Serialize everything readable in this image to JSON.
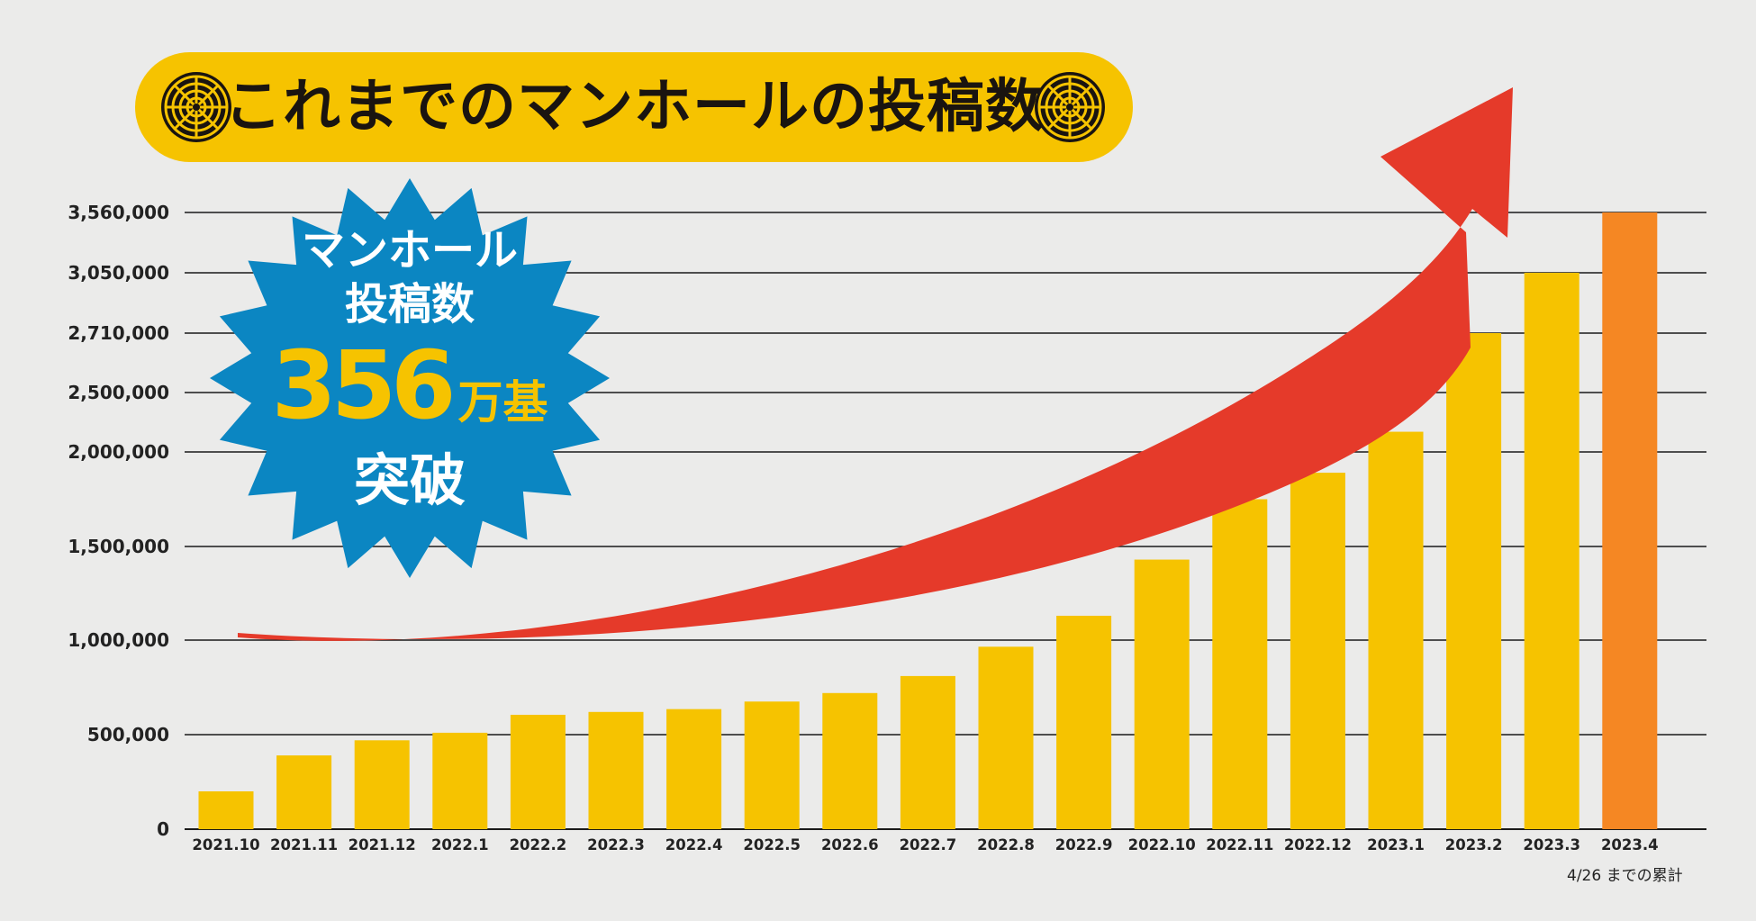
{
  "title": "これまでのマンホールの投稿数",
  "badge": {
    "line1": "マンホール",
    "line2": "投稿数",
    "number": "356",
    "unit": "万基",
    "line4": "突破"
  },
  "footnote": "4/26 までの累計",
  "colors": {
    "banner": "#f6c300",
    "bar": "#f6c300",
    "bar_highlight": "#f58723",
    "arrow": "#e53a2a",
    "badge": "#0b86c2",
    "badge_text_accent": "#f6c300",
    "top_tick_label": "#e60012"
  },
  "icons": [
    "manhole-cover-icon",
    "manhole-cover-icon"
  ],
  "chart_data": {
    "type": "bar",
    "title": "これまでのマンホールの投稿数",
    "categories": [
      "2021.10",
      "2021.11",
      "2021.12",
      "2022.1",
      "2022.2",
      "2022.3",
      "2022.4",
      "2022.5",
      "2022.6",
      "2022.7",
      "2022.8",
      "2022.9",
      "2022.10",
      "2022.11",
      "2022.12",
      "2023.1",
      "2023.2",
      "2023.3",
      "2023.4"
    ],
    "values": [
      200000,
      390000,
      470000,
      510000,
      605000,
      620000,
      635000,
      675000,
      720000,
      810000,
      965000,
      1130000,
      1430000,
      1750000,
      1890000,
      2170000,
      2710000,
      3050000,
      3560000
    ],
    "highlight_index": 18,
    "y_ticks": [
      {
        "value": 0,
        "label": "0"
      },
      {
        "value": 500000,
        "label": "500,000"
      },
      {
        "value": 1000000,
        "label": "1,000,000"
      },
      {
        "value": 1500000,
        "label": "1,500,000"
      },
      {
        "value": 2000000,
        "label": "2,000,000"
      },
      {
        "value": 2500000,
        "label": "2,500,000"
      },
      {
        "value": 2710000,
        "label": "2,710,000"
      },
      {
        "value": 3050000,
        "label": "3,050,000"
      },
      {
        "value": 3560000,
        "label": "3,560,000",
        "highlight": true
      }
    ],
    "xlabel": "",
    "ylabel": "",
    "grid": true,
    "trend_arrow": true
  }
}
